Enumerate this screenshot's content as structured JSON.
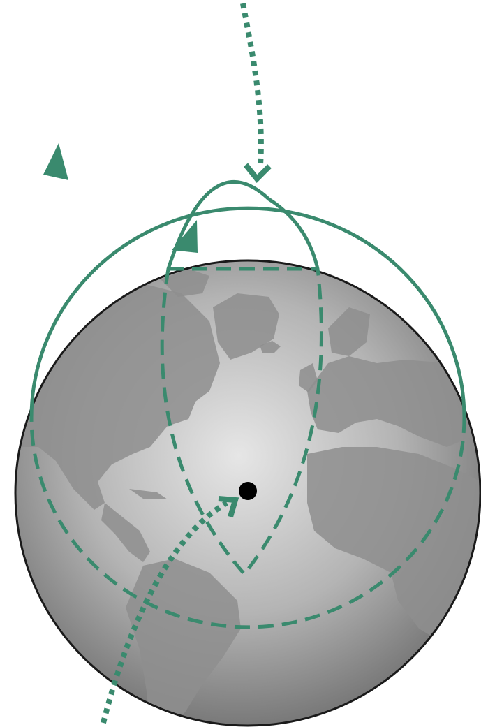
{
  "colors": {
    "orbit": "#3a8a6e",
    "trajectory": "#3a8a6e",
    "globe_light": "#e6e6e6",
    "globe_mid": "#b4b4b4",
    "globe_dark": "#6f6f6f",
    "globe_outline": "#1a1a1a",
    "center_marker": "#000000"
  },
  "elements": {
    "globe": "earth-globe",
    "orbits": [
      "large-elliptical-orbit",
      "small-elliptical-orbit"
    ],
    "trajectories": [
      "incoming-trajectory",
      "departing-trajectory"
    ],
    "direction_arrows": 2,
    "center_point": "earth-center-dot"
  }
}
